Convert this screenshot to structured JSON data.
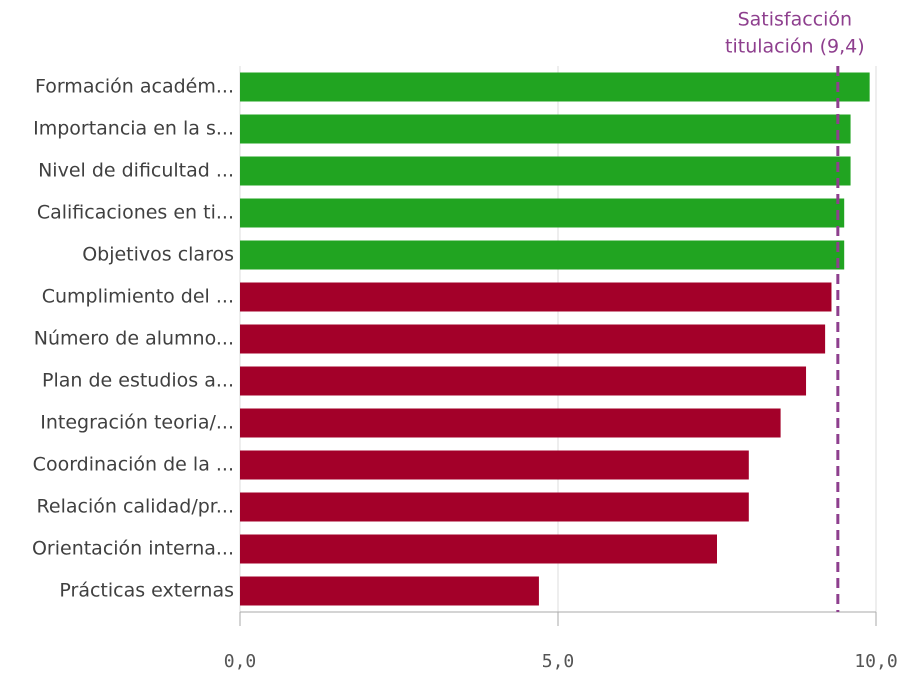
{
  "chart_data": {
    "type": "bar",
    "orientation": "horizontal",
    "categories": [
      "Formación académ...",
      "Importancia en la s...",
      "Nivel de dificultad ...",
      "Calificaciones en ti...",
      "Objetivos claros",
      "Cumplimiento del ...",
      "Número de alumno...",
      "Plan de estudios a...",
      "Integración teoria/...",
      "Coordinación de la ...",
      "Relación calidad/pr...",
      "Orientación interna...",
      "Prácticas externas"
    ],
    "values": [
      9.9,
      9.6,
      9.6,
      9.5,
      9.5,
      9.3,
      9.2,
      8.9,
      8.5,
      8.0,
      8.0,
      7.5,
      4.7
    ],
    "colors": [
      "#21a421",
      "#21a421",
      "#21a421",
      "#21a421",
      "#21a421",
      "#a30029",
      "#a30029",
      "#a30029",
      "#a30029",
      "#a30029",
      "#a30029",
      "#a30029",
      "#a30029"
    ],
    "xlim": [
      0,
      10
    ],
    "xticks": [
      {
        "value": 0,
        "label": "0,0"
      },
      {
        "value": 5,
        "label": "5,0"
      },
      {
        "value": 10,
        "label": "10,0"
      }
    ],
    "grid": true,
    "reference_line": {
      "value": 9.4,
      "label": [
        "Satisfacción",
        "titulación (9,4)"
      ],
      "color": "#8e3f8e"
    }
  }
}
